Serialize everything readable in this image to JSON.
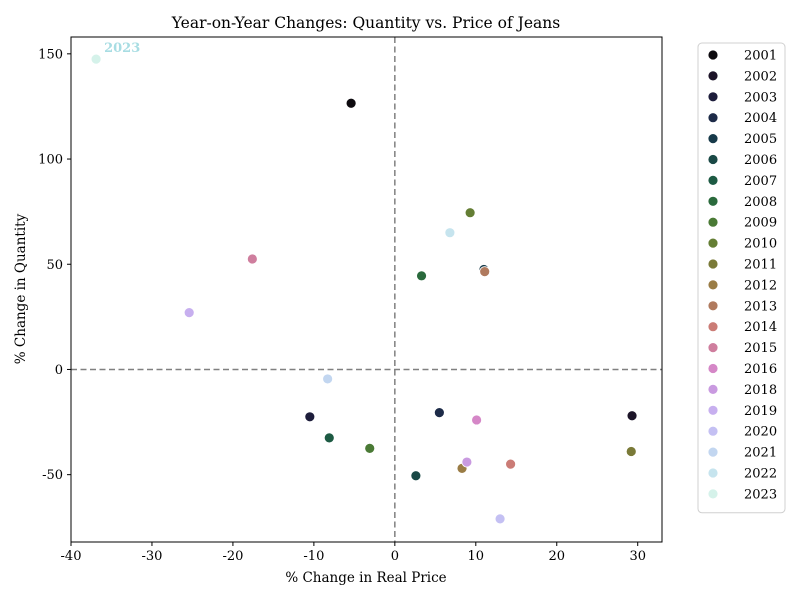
{
  "chart_data": {
    "type": "scatter",
    "title": "Year-on-Year Changes: Quantity vs. Price of Jeans",
    "xlabel": "% Change in Real Price",
    "ylabel": "% Change in Quantity",
    "xlim": [
      -40,
      33
    ],
    "ylim": [
      -82,
      158
    ],
    "xticks": [
      -40,
      -30,
      -20,
      -10,
      0,
      10,
      20,
      30
    ],
    "yticks": [
      -50,
      0,
      50,
      100,
      150
    ],
    "reference_lines": {
      "x": 0,
      "y": 0,
      "style": "dashed",
      "color": "#808080"
    },
    "legend": {
      "position": "outside-right"
    },
    "points": [
      {
        "label": "2001",
        "x": -5.4,
        "y": 126.5,
        "color": "#0d0a0f"
      },
      {
        "label": "2002",
        "x": 29.3,
        "y": -22,
        "color": "#1c1428"
      },
      {
        "label": "2003",
        "x": -10.5,
        "y": -22.5,
        "color": "#1d1d3b"
      },
      {
        "label": "2004",
        "x": 5.5,
        "y": -20.5,
        "color": "#1d2b48"
      },
      {
        "label": "2005",
        "x": 11,
        "y": 47.5,
        "color": "#173a4a"
      },
      {
        "label": "2006",
        "x": 2.6,
        "y": -50.5,
        "color": "#1a4946"
      },
      {
        "label": "2007",
        "x": -8.1,
        "y": -32.5,
        "color": "#1d5a43"
      },
      {
        "label": "2008",
        "x": 3.3,
        "y": 44.5,
        "color": "#2a6a3c"
      },
      {
        "label": "2009",
        "x": -3.1,
        "y": -37.5,
        "color": "#4a7a35"
      },
      {
        "label": "2010",
        "x": 9.3,
        "y": 74.5,
        "color": "#647e34"
      },
      {
        "label": "2011",
        "x": 29.2,
        "y": -39,
        "color": "#7a7a38"
      },
      {
        "label": "2012",
        "x": 8.3,
        "y": -47,
        "color": "#9a7c45"
      },
      {
        "label": "2013",
        "x": 11.1,
        "y": 46.5,
        "color": "#b07a5e"
      },
      {
        "label": "2014",
        "x": 14.3,
        "y": -45,
        "color": "#cb7c76"
      },
      {
        "label": "2015",
        "x": -17.6,
        "y": 52.5,
        "color": "#cf7e9e"
      },
      {
        "label": "2016",
        "x": 10.1,
        "y": -24,
        "color": "#d587c7"
      },
      {
        "label": "2018",
        "x": 8.9,
        "y": -44,
        "color": "#c99ae0"
      },
      {
        "label": "2019",
        "x": -25.4,
        "y": 27,
        "color": "#c7afef"
      },
      {
        "label": "2020",
        "x": 13,
        "y": -71,
        "color": "#c4c0f3"
      },
      {
        "label": "2021",
        "x": -8.3,
        "y": -4.5,
        "color": "#c2d6f0"
      },
      {
        "label": "2022",
        "x": 6.8,
        "y": 65,
        "color": "#c6e4ee"
      },
      {
        "label": "2023",
        "x": -36.9,
        "y": 147.5,
        "color": "#d5f2ea"
      }
    ],
    "annotations": [
      {
        "text": "2023",
        "x": -36.9,
        "y": 147.5,
        "color": "#a8dde3"
      }
    ]
  }
}
